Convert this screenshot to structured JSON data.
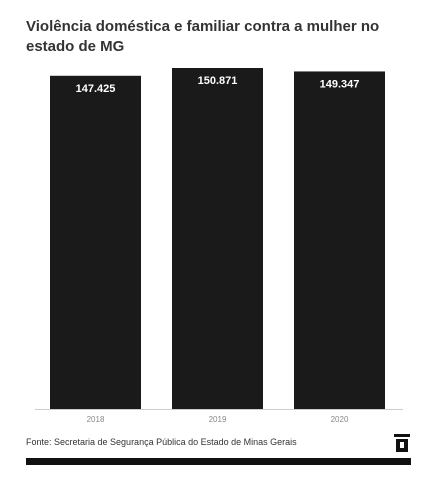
{
  "title": "Violência doméstica e familiar contra a mulher no estado de MG",
  "footer": {
    "source": "Fonte: Secretaria de Segurança Pública do Estado de Minas Gerais"
  },
  "icons": {
    "logo": "publisher-logo-icon"
  },
  "colors": {
    "bar": "#1a1a1a",
    "bar_label": "#ffffff",
    "axis": "#cccccc",
    "tick": "#888888"
  },
  "chart_data": {
    "type": "bar",
    "categories": [
      "2018",
      "2019",
      "2020"
    ],
    "values": [
      147425,
      150871,
      149347
    ],
    "labels": [
      "147.425",
      "150.871",
      "149.347"
    ],
    "title": "Violência doméstica e familiar contra a mulher no estado de MG",
    "xlabel": "",
    "ylabel": "",
    "ylim": [
      0,
      150871
    ],
    "grid": false,
    "legend": "none"
  }
}
